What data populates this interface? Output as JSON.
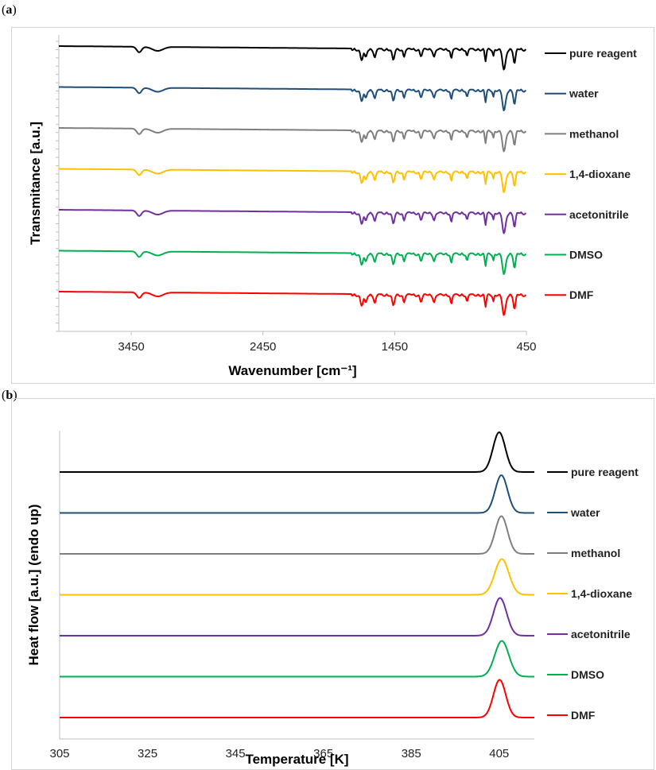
{
  "panels": {
    "a": {
      "label": "a"
    },
    "b": {
      "label": "b"
    }
  },
  "chart_data": [
    {
      "type": "line",
      "panel": "a",
      "xlabel": "Wavenumber [cm⁻¹]",
      "ylabel": "Transmitance [a.u.]",
      "xlim": [
        4000,
        450
      ],
      "x_reversed": true,
      "xticks": [
        3450,
        2450,
        1450,
        450
      ],
      "ytick_count": 35,
      "legend_position": "right",
      "features_cm1": {
        "bands": [
          3390,
          3250,
          1700,
          1670,
          1600,
          1460,
          1380,
          1250,
          1150,
          1020,
          900,
          760,
          700,
          620,
          540
        ],
        "baseline_step_at": 1780
      },
      "series": [
        {
          "name": "pure reagent",
          "color": "#000000",
          "offset": 0
        },
        {
          "name": "water",
          "color": "#1f4e79",
          "offset": 1
        },
        {
          "name": "methanol",
          "color": "#7f7f7f",
          "offset": 2
        },
        {
          "name": "1,4-dioxane",
          "color": "#ffc000",
          "offset": 3
        },
        {
          "name": "acetonitrile",
          "color": "#7030a0",
          "offset": 4
        },
        {
          "name": "DMSO",
          "color": "#00b050",
          "offset": 5
        },
        {
          "name": "DMF",
          "color": "#ff0000",
          "offset": 6
        }
      ]
    },
    {
      "type": "line",
      "panel": "b",
      "xlabel": "Temperature [K]",
      "ylabel": "Heat flow [a.u.] (endo up)",
      "xlim": [
        305,
        413
      ],
      "xticks": [
        305,
        325,
        345,
        365,
        385,
        405
      ],
      "legend_position": "right",
      "series": [
        {
          "name": "pure reagent",
          "color": "#000000",
          "peak_K": 405.0,
          "width_K": 1.4,
          "height": 1.0
        },
        {
          "name": "water",
          "color": "#1f4e79",
          "peak_K": 405.5,
          "width_K": 1.4,
          "height": 0.95
        },
        {
          "name": "methanol",
          "color": "#7f7f7f",
          "peak_K": 405.5,
          "width_K": 1.4,
          "height": 0.95
        },
        {
          "name": "1,4-dioxane",
          "color": "#ffc000",
          "peak_K": 405.6,
          "width_K": 1.6,
          "height": 0.9
        },
        {
          "name": "acetonitrile",
          "color": "#7030a0",
          "peak_K": 405.2,
          "width_K": 1.5,
          "height": 0.95
        },
        {
          "name": "DMSO",
          "color": "#00b050",
          "peak_K": 405.6,
          "width_K": 1.6,
          "height": 0.9
        },
        {
          "name": "DMF",
          "color": "#ff0000",
          "peak_K": 405.1,
          "width_K": 1.4,
          "height": 0.95
        }
      ]
    }
  ]
}
